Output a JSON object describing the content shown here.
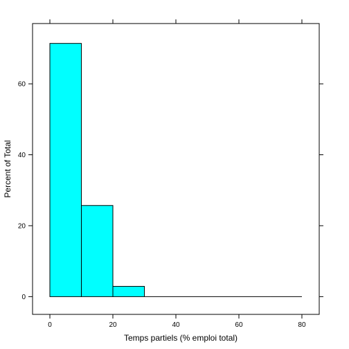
{
  "chart_data": {
    "type": "bar",
    "xlabel": "Temps partiels (% emploi total)",
    "ylabel": "Percent of Total",
    "bins": [
      {
        "x0": 0,
        "x1": 10,
        "value": 71.4
      },
      {
        "x0": 10,
        "x1": 20,
        "value": 25.7
      },
      {
        "x0": 20,
        "x1": 30,
        "value": 2.9
      },
      {
        "x0": 30,
        "x1": 40,
        "value": 0
      },
      {
        "x0": 40,
        "x1": 50,
        "value": 0
      },
      {
        "x0": 50,
        "x1": 60,
        "value": 0
      },
      {
        "x0": 60,
        "x1": 70,
        "value": 0
      },
      {
        "x0": 70,
        "x1": 80,
        "value": 0
      }
    ],
    "xlim": [
      -5.5,
      85.5
    ],
    "ylim": [
      -5,
      77
    ],
    "x_ticks": [
      0,
      20,
      40,
      60,
      80
    ],
    "y_ticks": [
      0,
      20,
      40,
      60
    ],
    "bar_color": "#00FFFF",
    "grid": false
  }
}
